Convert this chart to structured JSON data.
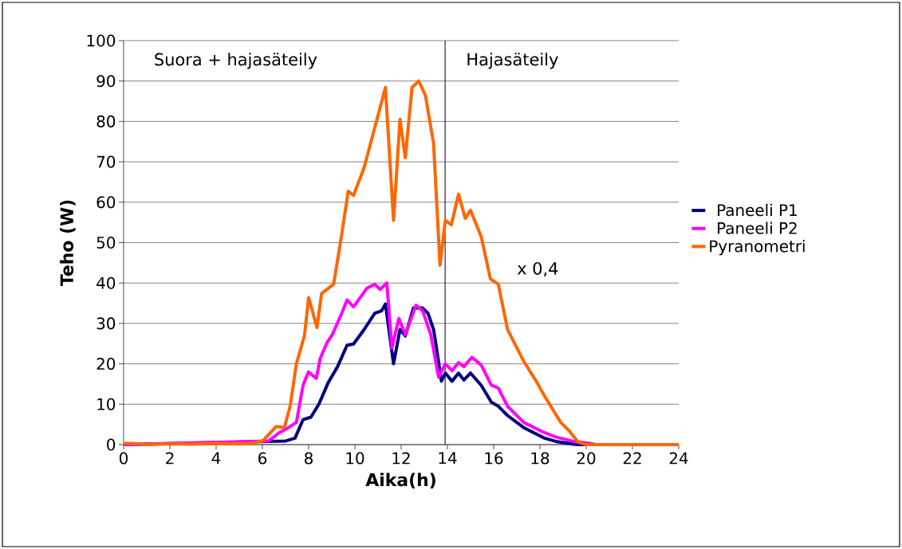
{
  "chart_data": {
    "type": "line",
    "xlabel": "Aika(h)",
    "ylabel": "Teho (W)",
    "xlim": [
      0,
      24
    ],
    "xticks": [
      0,
      2,
      4,
      6,
      8,
      10,
      12,
      14,
      16,
      18,
      20,
      22,
      24
    ],
    "ylim": [
      0,
      100
    ],
    "yticks": [
      0,
      10,
      20,
      30,
      40,
      50,
      60,
      70,
      80,
      90,
      100
    ],
    "grid": "y",
    "legend": "right",
    "marker": "none",
    "line_style": "solid",
    "annotations": [
      "Suora + hajasäteily",
      "Hajasäteily",
      "x 0,4"
    ],
    "ref_lines": [
      {
        "axis": "x",
        "value": 13.9,
        "color": "#000000"
      }
    ],
    "series": [
      {
        "name": "Paneeli P1",
        "color": "#000080",
        "x": [
          0,
          7.01,
          7.41,
          7.76,
          8.1,
          8.45,
          8.85,
          9.25,
          9.66,
          9.94,
          10.4,
          10.86,
          11.15,
          11.32,
          11.67,
          11.95,
          12.18,
          12.53,
          12.93,
          13.16,
          13.4,
          13.51,
          13.74,
          13.91,
          14.2,
          14.48,
          14.71,
          15,
          15.46,
          15.9,
          16.2,
          16.6,
          17.3,
          18.2,
          18.68,
          19.25,
          19.6,
          24
        ],
        "values": [
          0,
          0.9,
          1.6,
          6.2,
          6.8,
          10.1,
          15.4,
          19.3,
          24.6,
          24.9,
          28.5,
          32.5,
          33.1,
          34.8,
          20,
          28.5,
          26.9,
          33.8,
          33.8,
          32.5,
          28.5,
          24.6,
          15.7,
          17.7,
          15.7,
          17.7,
          16,
          17.7,
          14.7,
          10.5,
          9.5,
          7.2,
          4.2,
          1.6,
          0.8,
          0.3,
          0,
          0
        ]
      },
      {
        "name": "Paneeli P2",
        "color": "#ff00ff",
        "x": [
          0,
          6.27,
          6.72,
          7.13,
          7.47,
          7.76,
          7.99,
          8.33,
          8.5,
          8.79,
          9.02,
          9.43,
          9.66,
          9.94,
          10.52,
          10.86,
          11.09,
          11.38,
          11.6,
          11.9,
          12.18,
          12.64,
          12.93,
          13.28,
          13.62,
          13.91,
          14.2,
          14.48,
          14.71,
          15.06,
          15.46,
          15.9,
          16.2,
          16.6,
          17.3,
          18.1,
          18.68,
          19.37,
          20.17,
          20.4,
          24
        ],
        "values": [
          0,
          0.9,
          2.9,
          4.2,
          5.5,
          14.7,
          18,
          16.4,
          21.3,
          25.2,
          27.2,
          32.5,
          35.8,
          34.1,
          38.7,
          39.7,
          38.4,
          40,
          23.9,
          31.2,
          27.2,
          34.5,
          33.1,
          27.2,
          16.7,
          20,
          18.3,
          20.3,
          19.3,
          21.6,
          19.7,
          14.7,
          14,
          9.5,
          5.5,
          3.2,
          1.9,
          0.9,
          0.3,
          0,
          0
        ]
      },
      {
        "name": "Pyranometri",
        "color": "#ff6600",
        "x": [
          0,
          0.4,
          1,
          2,
          3,
          4,
          5,
          5.5,
          6.03,
          6.6,
          6.95,
          7.2,
          7.47,
          7.82,
          8.0,
          8.36,
          8.56,
          9.08,
          9.43,
          9.71,
          9.94,
          10.4,
          10.86,
          11.32,
          11.67,
          11.95,
          12.18,
          12.47,
          12.76,
          13.05,
          13.4,
          13.68,
          13.91,
          14.17,
          14.48,
          14.77,
          15,
          15.46,
          15.86,
          16.2,
          16.6,
          17.3,
          17.87,
          18.2,
          18.9,
          19.25,
          19.65,
          20,
          24
        ],
        "values": [
          0.3,
          0.3,
          0,
          0.2,
          0.1,
          0.3,
          0.2,
          0.3,
          1,
          4.5,
          4.2,
          9.5,
          20,
          27,
          36.4,
          29,
          37.4,
          39.7,
          52,
          62.7,
          61.7,
          68.6,
          78.5,
          88.4,
          55.5,
          80.5,
          71,
          88.4,
          90,
          86.4,
          74.6,
          44.4,
          55.5,
          54.4,
          62,
          56,
          58,
          51.5,
          41,
          39.7,
          28.5,
          20.6,
          15.4,
          12,
          5.5,
          3.5,
          0.6,
          0,
          0
        ]
      }
    ]
  }
}
